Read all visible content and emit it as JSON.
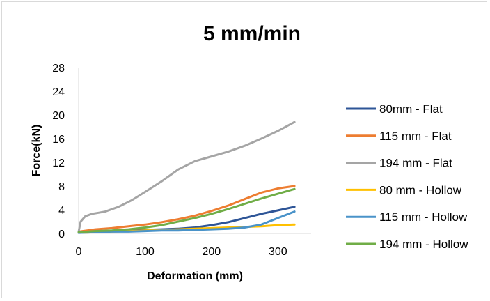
{
  "chart_data": {
    "type": "line",
    "title": "5 mm/min",
    "xlabel": "Deformation (mm)",
    "ylabel": "Force(kN)",
    "xlim": [
      0,
      350
    ],
    "ylim": [
      0,
      28
    ],
    "xticks": [
      0,
      100,
      200,
      300
    ],
    "yticks": [
      0,
      4,
      8,
      12,
      16,
      20,
      24,
      28
    ],
    "grid": false,
    "legend_position": "right",
    "series": [
      {
        "name": "80mm - Flat",
        "color": "#2e5597",
        "x": [
          0,
          25,
          50,
          75,
          100,
          125,
          150,
          175,
          200,
          225,
          250,
          275,
          300,
          325
        ],
        "y": [
          0.2,
          0.3,
          0.4,
          0.5,
          0.6,
          0.7,
          0.8,
          1.0,
          1.4,
          1.9,
          2.6,
          3.3,
          3.9,
          4.5
        ]
      },
      {
        "name": "115 mm - Flat",
        "color": "#ed7d31",
        "x": [
          0,
          25,
          50,
          75,
          100,
          125,
          150,
          175,
          200,
          225,
          250,
          275,
          300,
          325
        ],
        "y": [
          0.3,
          0.7,
          0.9,
          1.2,
          1.5,
          1.9,
          2.4,
          3.0,
          3.8,
          4.7,
          5.8,
          6.9,
          7.6,
          8.0
        ]
      },
      {
        "name": "194 mm - Flat",
        "color": "#a5a5a5",
        "x": [
          0,
          3,
          10,
          20,
          30,
          40,
          60,
          80,
          100,
          125,
          150,
          175,
          200,
          225,
          250,
          275,
          300,
          325
        ],
        "y": [
          0.3,
          2.0,
          2.9,
          3.3,
          3.5,
          3.7,
          4.5,
          5.6,
          7.0,
          8.8,
          10.8,
          12.2,
          13.0,
          13.8,
          14.8,
          16.0,
          17.3,
          18.8
        ]
      },
      {
        "name": "80 mm - Hollow",
        "color": "#ffc000",
        "x": [
          0,
          25,
          50,
          75,
          100,
          125,
          150,
          175,
          200,
          225,
          250,
          275,
          300,
          325
        ],
        "y": [
          0.1,
          0.2,
          0.3,
          0.4,
          0.5,
          0.6,
          0.7,
          0.8,
          0.9,
          1.0,
          1.1,
          1.2,
          1.4,
          1.5
        ]
      },
      {
        "name": "115 mm - Hollow",
        "color": "#4a93c9",
        "x": [
          0,
          25,
          50,
          75,
          100,
          125,
          150,
          175,
          200,
          225,
          250,
          275,
          300,
          325
        ],
        "y": [
          0.1,
          0.2,
          0.3,
          0.3,
          0.4,
          0.5,
          0.5,
          0.6,
          0.7,
          0.8,
          1.0,
          1.5,
          2.6,
          3.7
        ]
      },
      {
        "name": "194 mm - Hollow",
        "color": "#70ad47",
        "x": [
          0,
          25,
          50,
          75,
          100,
          125,
          150,
          175,
          200,
          225,
          250,
          275,
          300,
          325
        ],
        "y": [
          0.2,
          0.4,
          0.5,
          0.7,
          1.0,
          1.4,
          2.0,
          2.6,
          3.3,
          4.1,
          5.0,
          5.9,
          6.7,
          7.5
        ]
      }
    ]
  }
}
